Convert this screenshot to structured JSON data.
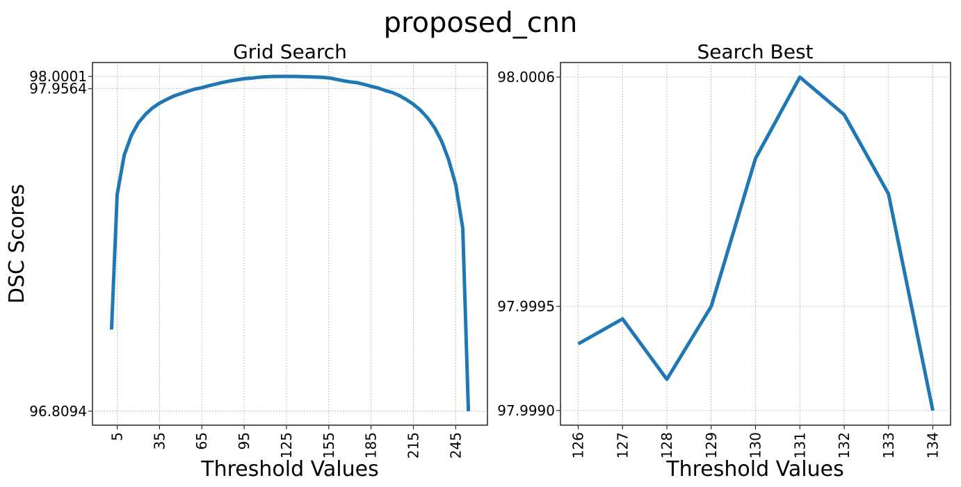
{
  "figure_title": "proposed_cnn",
  "chart_data": [
    {
      "type": "line",
      "title": "Grid Search",
      "xlabel": "Threshold Values",
      "ylabel": "DSC Scores",
      "x_ticks": [
        "5",
        "35",
        "65",
        "95",
        "125",
        "155",
        "185",
        "215",
        "245"
      ],
      "x_tick_values": [
        5,
        35,
        65,
        95,
        125,
        155,
        185,
        215,
        245
      ],
      "y_ticks": [
        "96.8094",
        "97.9564",
        "98.0001"
      ],
      "y_tick_values": [
        96.8094,
        97.9564,
        98.0001
      ],
      "xlim": [
        -12.5,
        267.5
      ],
      "ylim": [
        96.7598,
        98.0496
      ],
      "grid": true,
      "color": "#1f77b4",
      "x": [
        1,
        5,
        10,
        15,
        20,
        25,
        30,
        35,
        40,
        45,
        50,
        55,
        60,
        65,
        70,
        75,
        80,
        85,
        90,
        95,
        100,
        105,
        110,
        115,
        120,
        125,
        130,
        135,
        140,
        145,
        150,
        155,
        160,
        165,
        170,
        175,
        180,
        185,
        190,
        195,
        200,
        205,
        210,
        215,
        220,
        225,
        230,
        235,
        240,
        245,
        250,
        254
      ],
      "y": [
        97.1,
        97.58,
        97.72,
        97.79,
        97.835,
        97.865,
        97.888,
        97.905,
        97.918,
        97.93,
        97.939,
        97.947,
        97.955,
        97.96,
        97.967,
        97.973,
        97.979,
        97.984,
        97.988,
        97.992,
        97.994,
        97.997,
        97.999,
        98.0,
        98.0001,
        98.0001,
        98.0001,
        97.9995,
        97.999,
        97.998,
        97.997,
        97.995,
        97.99,
        97.985,
        97.981,
        97.978,
        97.972,
        97.965,
        97.959,
        97.95,
        97.943,
        97.932,
        97.918,
        97.901,
        97.88,
        97.853,
        97.818,
        97.77,
        97.704,
        97.615,
        97.46,
        96.8094
      ]
    },
    {
      "type": "line",
      "title": "Search Best",
      "xlabel": "Threshold Values",
      "ylabel": "",
      "x_ticks": [
        "126",
        "127",
        "128",
        "129",
        "130",
        "131",
        "132",
        "133",
        "134"
      ],
      "x_tick_values": [
        126,
        127,
        128,
        129,
        130,
        131,
        132,
        133,
        134
      ],
      "y_ticks": [
        "97.9990",
        "97.9995",
        "98.0006"
      ],
      "y_tick_values": [
        97.999,
        97.9995,
        98.0006
      ],
      "xlim": [
        125.6,
        134.4
      ],
      "ylim": [
        97.99893,
        98.00067
      ],
      "grid": true,
      "color": "#1f77b4",
      "x": [
        126,
        127,
        128,
        129,
        130,
        131,
        132,
        133,
        134
      ],
      "y": [
        97.99932,
        97.99944,
        97.99915,
        97.9995,
        98.00021,
        98.0006,
        98.00042,
        98.00004,
        97.999
      ]
    }
  ]
}
